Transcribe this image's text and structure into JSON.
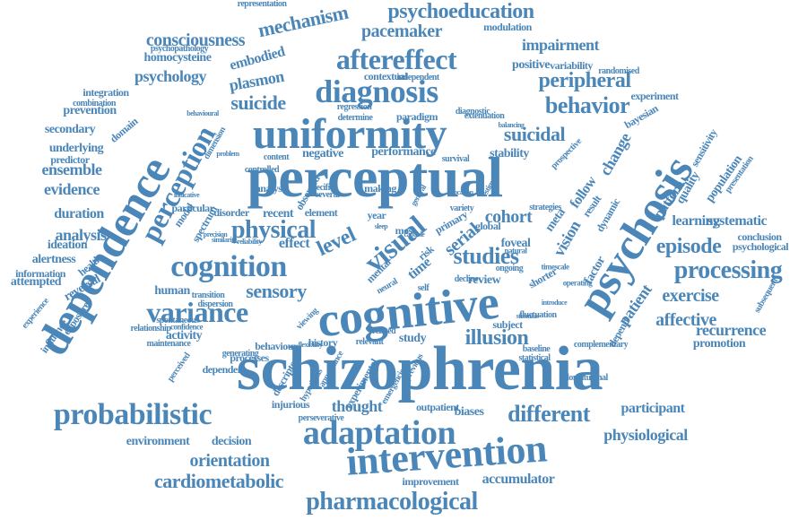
{
  "color": "#4a86b8",
  "words": [
    "schizophrenia",
    "perceptual",
    "cognitive",
    "dependence",
    "psychosis",
    "uniformity",
    "intervention",
    "probabilistic",
    "adaptation",
    "cognition",
    "diagnosis",
    "aftereffect",
    "perception",
    "visual",
    "variance",
    "processing",
    "pharmacological",
    "different",
    "episode",
    "behavior",
    "peripheral",
    "physical",
    "studies",
    "sensory",
    "suicidal",
    "cardiometabolic",
    "illusion",
    "orientation",
    "exercise",
    "affective",
    "recurrence",
    "psychoeducation",
    "consciousness",
    "mechanism",
    "pacemaker",
    "impairment",
    "physiological",
    "cohort",
    "level",
    "serial",
    "accumulator",
    "thought",
    "patient",
    "change",
    "stability",
    "learning",
    "suicide",
    "plasmon",
    "embodied",
    "psychology",
    "homocysteine",
    "evidence",
    "ensemble",
    "analysis",
    "duration",
    "participant",
    "environment",
    "decision",
    "promotion",
    "improvement",
    "outpatient",
    "injurious",
    "biases",
    "study",
    "review",
    "human",
    "activity",
    "time",
    "pattern",
    "vision",
    "factor",
    "follow",
    "positive",
    "variability",
    "modulation",
    "representation",
    "psychopathology",
    "integration",
    "prevention",
    "secondary",
    "underlying",
    "predictor",
    "domain",
    "ideation",
    "alertness",
    "information",
    "attempted",
    "reversal",
    "health",
    "exposure",
    "influence",
    "experience",
    "effect",
    "performance",
    "negative",
    "content",
    "controlled",
    "model",
    "dimension",
    "element",
    "year",
    "most",
    "risk",
    "systematic",
    "conclusion",
    "psychological",
    "population",
    "sensitivity",
    "presentation",
    "quality",
    "bayesian",
    "experiment",
    "randomised",
    "complementary",
    "longitudinal",
    "subsequent",
    "dependent",
    "processes",
    "behaviour",
    "history",
    "descriptor",
    "perceived",
    "maintenance",
    "relationship",
    "spontaneous",
    "particular",
    "disorder",
    "spectrum",
    "recent",
    "analyse",
    "observed",
    "specific",
    "several",
    "making",
    "paradigm",
    "contextual",
    "independent",
    "determine",
    "extenuation",
    "regression",
    "diagnostic",
    "transition",
    "dispersion",
    "generating",
    "appearance",
    "hypothesis",
    "experimental",
    "emergencies",
    "previous",
    "perseverative",
    "subject",
    "meta",
    "dynamic",
    "result",
    "prospective",
    "strategies",
    "global",
    "foveal",
    "primary",
    "decline",
    "mental",
    "neural",
    "relevant",
    "related",
    "viewing",
    "self",
    "ongoing",
    "shorter",
    "statistical",
    "baseline",
    "fluctuation",
    "depend",
    "variety",
    "survival",
    "introduce",
    "combination",
    "behavioural",
    "confidence",
    "operating",
    "problem",
    "estimate",
    "natural",
    "timescale",
    "balancing",
    "flexibility",
    "reliability",
    "similarity",
    "precision",
    "indicative",
    "sleep",
    "stimulus",
    "capable",
    "general",
    "location"
  ]
}
